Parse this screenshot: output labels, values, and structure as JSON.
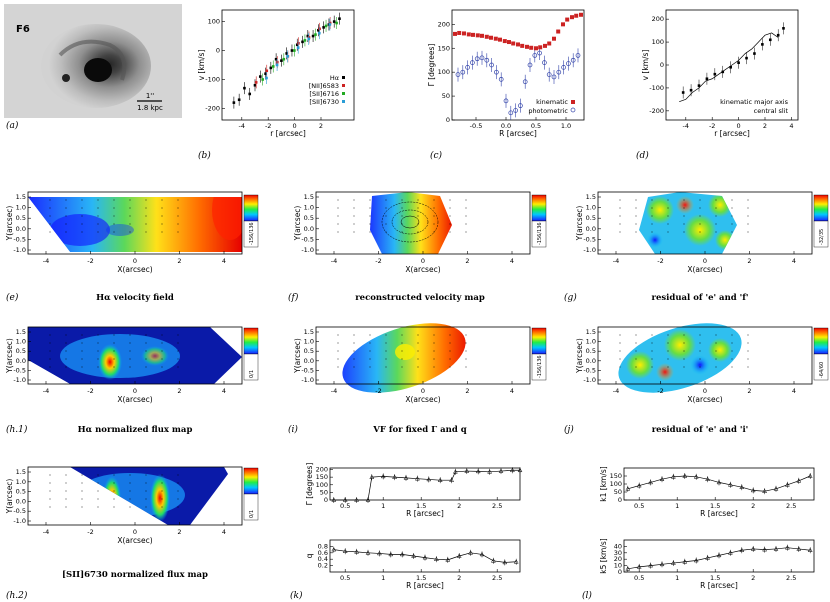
{
  "figure": {
    "galaxy_name": "F6",
    "scale_bar_top": "1''",
    "scale_bar_bottom": "1.8 kpc"
  },
  "chart_data": [
    {
      "id": "b",
      "type": "scatter",
      "label": "(b)",
      "xlabel": "r [arcsec]",
      "ylabel": "v [km/s]",
      "xlim": [
        -5.5,
        4.5
      ],
      "ylim": [
        -240,
        140
      ],
      "xticks": [
        -4,
        -2,
        0,
        2
      ],
      "yticks": [
        -200,
        -100,
        0,
        100
      ],
      "legend": [
        "Hα",
        "[NII]6583",
        "[SII]6716",
        "[SII]6730"
      ],
      "series": [
        {
          "name": "Hα",
          "color": "#000000",
          "x": [
            -4.6,
            -4.2,
            -3.8,
            -3.4,
            -3.0,
            -2.6,
            -2.2,
            -1.8,
            -1.4,
            -1.0,
            -0.6,
            -0.2,
            0.2,
            0.6,
            1.0,
            1.4,
            1.8,
            2.2,
            2.6,
            3.0,
            3.4
          ],
          "y": [
            -180,
            -170,
            -130,
            -150,
            -120,
            -90,
            -80,
            -60,
            -30,
            -35,
            -10,
            0,
            20,
            30,
            50,
            50,
            70,
            80,
            90,
            100,
            110
          ]
        },
        {
          "name": "[NII]6583",
          "color": "#cc2222",
          "x": [
            -3.0,
            -2.2,
            -1.4,
            -0.6,
            0.2,
            1.0,
            1.8,
            2.6
          ],
          "y": [
            -110,
            -70,
            -40,
            -20,
            25,
            45,
            75,
            95
          ]
        },
        {
          "name": "[SII]6716",
          "color": "#22aa22",
          "x": [
            -2.6,
            -1.8,
            -1.0,
            -0.2,
            0.6,
            1.4,
            2.2,
            3.0
          ],
          "y": [
            -100,
            -55,
            -30,
            0,
            35,
            55,
            85,
            95
          ]
        },
        {
          "name": "[SII]6730",
          "color": "#2a9dd6",
          "x": [
            -2.4,
            -1.6,
            -0.8,
            0.0,
            0.8,
            1.6,
            2.4
          ],
          "y": [
            -95,
            -50,
            -20,
            10,
            40,
            60,
            90
          ]
        }
      ]
    },
    {
      "id": "c",
      "type": "scatter",
      "label": "(c)",
      "xlabel": "R [arcsec]",
      "ylabel": "Γ [degrees]",
      "xlim": [
        -0.9,
        1.3
      ],
      "ylim": [
        0,
        230
      ],
      "xticks": [
        -0.5,
        0.0,
        0.5,
        1.0
      ],
      "xtick_labels": [
        "-0.5",
        "0.0",
        "0.5",
        "1.0"
      ],
      "yticks": [
        0,
        50,
        100,
        150,
        200
      ],
      "legend": [
        "kinematic",
        "photometric"
      ],
      "series": [
        {
          "name": "kinematic",
          "color": "#cc2222",
          "x": [
            -0.85,
            -0.78,
            -0.7,
            -0.62,
            -0.55,
            -0.47,
            -0.4,
            -0.32,
            -0.25,
            -0.17,
            -0.1,
            -0.02,
            0.05,
            0.12,
            0.2,
            0.27,
            0.35,
            0.42,
            0.5,
            0.57,
            0.65,
            0.72,
            0.8,
            0.87,
            0.95,
            1.02,
            1.1,
            1.17,
            1.25
          ],
          "y": [
            180,
            182,
            181,
            179,
            178,
            177,
            176,
            174,
            172,
            170,
            168,
            165,
            163,
            160,
            158,
            155,
            153,
            151,
            150,
            152,
            155,
            160,
            170,
            185,
            200,
            210,
            215,
            218,
            220
          ]
        },
        {
          "name": "photometric",
          "color": "#3344aa",
          "x": [
            -0.8,
            -0.72,
            -0.64,
            -0.56,
            -0.48,
            -0.4,
            -0.32,
            -0.24,
            -0.16,
            -0.08,
            0.0,
            0.08,
            0.16,
            0.24,
            0.32,
            0.4,
            0.48,
            0.56,
            0.64,
            0.72,
            0.8,
            0.88,
            0.96,
            1.04,
            1.12,
            1.2
          ],
          "y": [
            95,
            100,
            110,
            120,
            128,
            130,
            125,
            115,
            100,
            85,
            40,
            15,
            20,
            30,
            80,
            115,
            135,
            140,
            120,
            95,
            90,
            100,
            110,
            118,
            125,
            135
          ]
        }
      ]
    },
    {
      "id": "d",
      "type": "scatter",
      "label": "(d)",
      "xlabel": "r [arcsec]",
      "ylabel": "v [km/s]",
      "xlim": [
        -5.5,
        4.5
      ],
      "ylim": [
        -240,
        240
      ],
      "xticks": [
        -4,
        -2,
        0,
        2,
        4
      ],
      "yticks": [
        -200,
        -100,
        0,
        100,
        200
      ],
      "legend": [
        "kinematic major axis",
        "central slit"
      ],
      "series": [
        {
          "name": "kinematic major axis",
          "color": "#000000",
          "x": [
            -4.5,
            -4.0,
            -3.5,
            -3.0,
            -2.5,
            -2.0,
            -1.5,
            -1.0,
            -0.5,
            0.0,
            0.5,
            1.0,
            1.5,
            2.0,
            2.5,
            3.0
          ],
          "y": [
            -160,
            -150,
            -120,
            -100,
            -70,
            -60,
            -40,
            -20,
            0,
            20,
            50,
            70,
            100,
            130,
            140,
            120
          ]
        },
        {
          "name": "central slit",
          "color": "#000000",
          "x": [
            -4.2,
            -3.6,
            -3.0,
            -2.4,
            -1.8,
            -1.2,
            -0.6,
            0.0,
            0.6,
            1.2,
            1.8,
            2.4,
            3.0,
            3.4
          ],
          "y": [
            -120,
            -110,
            -90,
            -60,
            -40,
            -30,
            -10,
            10,
            30,
            50,
            90,
            110,
            130,
            160
          ]
        }
      ]
    },
    {
      "id": "k",
      "type": "line",
      "label": "(k)",
      "panels": [
        {
          "ylabel": "Γ [degrees]",
          "xlabel": "R [arcsec]",
          "xlim": [
            0.3,
            2.8
          ],
          "ylim": [
            0,
            210
          ],
          "xticks": [
            0.5,
            1.0,
            1.5,
            2.0,
            2.5
          ],
          "yticks": [
            0,
            50,
            100,
            150,
            200
          ],
          "x": [
            0.35,
            0.5,
            0.65,
            0.8,
            0.85,
            1.0,
            1.15,
            1.3,
            1.45,
            1.6,
            1.75,
            1.9,
            1.95,
            2.1,
            2.25,
            2.4,
            2.55,
            2.7,
            2.8
          ],
          "y": [
            0,
            0,
            0,
            0,
            150,
            155,
            150,
            145,
            140,
            135,
            130,
            130,
            185,
            190,
            188,
            185,
            190,
            195,
            195
          ]
        },
        {
          "ylabel": "q",
          "xlabel": "R [arcsec]",
          "xlim": [
            0.3,
            2.8
          ],
          "ylim": [
            0,
            1.0
          ],
          "xticks": [
            0.5,
            1.0,
            1.5,
            2.0,
            2.5
          ],
          "yticks": [
            0.2,
            0.4,
            0.6,
            0.8
          ],
          "x": [
            0.35,
            0.5,
            0.65,
            0.8,
            0.95,
            1.1,
            1.25,
            1.4,
            1.55,
            1.7,
            1.85,
            2.0,
            2.15,
            2.3,
            2.45,
            2.6,
            2.75
          ],
          "y": [
            0.7,
            0.65,
            0.63,
            0.6,
            0.58,
            0.55,
            0.55,
            0.5,
            0.45,
            0.4,
            0.38,
            0.5,
            0.6,
            0.55,
            0.35,
            0.3,
            0.32
          ]
        }
      ]
    },
    {
      "id": "l",
      "type": "line",
      "label": "(l)",
      "panels": [
        {
          "ylabel": "k1 [km/s]",
          "xlabel": "R [arcsec]",
          "xlim": [
            0.3,
            2.8
          ],
          "ylim": [
            0,
            200
          ],
          "xticks": [
            0.5,
            1.0,
            1.5,
            2.0,
            2.5
          ],
          "yticks": [
            0,
            50,
            100,
            150
          ],
          "x": [
            0.35,
            0.5,
            0.65,
            0.8,
            0.95,
            1.1,
            1.25,
            1.4,
            1.55,
            1.7,
            1.85,
            2.0,
            2.15,
            2.3,
            2.45,
            2.6,
            2.75
          ],
          "y": [
            70,
            90,
            110,
            130,
            145,
            150,
            145,
            130,
            110,
            95,
            80,
            60,
            55,
            70,
            95,
            120,
            150
          ]
        },
        {
          "ylabel": "k5 [km/s]",
          "xlabel": "R [arcsec]",
          "xlim": [
            0.3,
            2.8
          ],
          "ylim": [
            0,
            50
          ],
          "xticks": [
            0.5,
            1.0,
            1.5,
            2.0,
            2.5
          ],
          "yticks": [
            0,
            10,
            20,
            30,
            40
          ],
          "x": [
            0.35,
            0.5,
            0.65,
            0.8,
            0.95,
            1.1,
            1.25,
            1.4,
            1.55,
            1.7,
            1.85,
            2.0,
            2.15,
            2.3,
            2.45,
            2.6,
            2.75
          ],
          "y": [
            5,
            8,
            10,
            12,
            14,
            16,
            18,
            22,
            26,
            30,
            34,
            36,
            35,
            36,
            38,
            36,
            34
          ]
        }
      ]
    }
  ],
  "maps": [
    {
      "id": "e",
      "label": "(e)",
      "caption": "Hα velocity field",
      "xlabel": "X(arcsec)",
      "ylabel": "Y(arcsec)",
      "colorbar": "-156/136"
    },
    {
      "id": "f",
      "label": "(f)",
      "caption": "reconstructed velocity map",
      "xlabel": "X(arcsec)",
      "ylabel": "Y(arcsec)",
      "colorbar": "-156/136"
    },
    {
      "id": "g",
      "label": "(g)",
      "caption": "residual of 'e' and 'f'",
      "xlabel": "X(arcsec)",
      "ylabel": "Y(arcsec)",
      "colorbar": "-32/35"
    },
    {
      "id": "h1",
      "label": "(h.1)",
      "caption": "Hα normalized flux map",
      "xlabel": "X(arcsec)",
      "ylabel": "Y(arcsec)",
      "colorbar": "0/1"
    },
    {
      "id": "i",
      "label": "(i)",
      "caption": "VF for fixed Γ and q",
      "xlabel": "X(arcsec)",
      "ylabel": "Y(arcsec)",
      "colorbar": "-156/136"
    },
    {
      "id": "j",
      "label": "(j)",
      "caption": "residual of 'e' and 'i'",
      "xlabel": "X(arcsec)",
      "ylabel": "Y(arcsec)",
      "colorbar": "-64/60"
    },
    {
      "id": "h2",
      "label": "(h.2)",
      "caption": "[SII]6730 normalized flux map",
      "xlabel": "X(arcsec)",
      "ylabel": "Y(arcsec)",
      "colorbar": "0/1"
    }
  ],
  "map_axes": {
    "xticks": [
      "-4",
      "-2",
      "0",
      "2",
      "4"
    ],
    "yticks": [
      "1.5",
      "1.0",
      "0.5",
      "0.0",
      "-0.5",
      "-1.0"
    ]
  },
  "image_panel": {
    "label": "(a)"
  }
}
